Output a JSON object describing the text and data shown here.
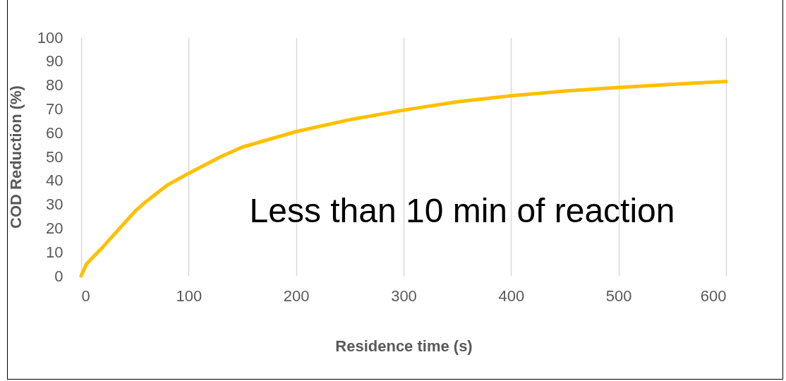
{
  "chart_data": {
    "type": "line",
    "xlabel": "Residence time (s)",
    "ylabel": "COD Reduction (%)",
    "x": [
      0,
      5,
      20,
      50,
      60,
      80,
      100,
      130,
      150,
      200,
      250,
      300,
      350,
      400,
      450,
      500,
      550,
      600
    ],
    "series": [
      {
        "color": "#ffc000",
        "values": [
          0,
          5,
          12,
          27,
          31,
          38,
          43,
          50,
          54,
          60.5,
          65.5,
          69.5,
          73,
          75.5,
          77.5,
          79,
          80.3,
          81.5
        ]
      }
    ],
    "xlim": [
      0,
      600
    ],
    "xticks": [
      0,
      100,
      200,
      300,
      400,
      500,
      600
    ],
    "ylim": [
      0,
      100
    ],
    "yticks": [
      0,
      10,
      20,
      30,
      40,
      50,
      60,
      70,
      80,
      90,
      100
    ],
    "grid": "x",
    "annotations": [
      "Less than 10 min of reaction"
    ]
  }
}
